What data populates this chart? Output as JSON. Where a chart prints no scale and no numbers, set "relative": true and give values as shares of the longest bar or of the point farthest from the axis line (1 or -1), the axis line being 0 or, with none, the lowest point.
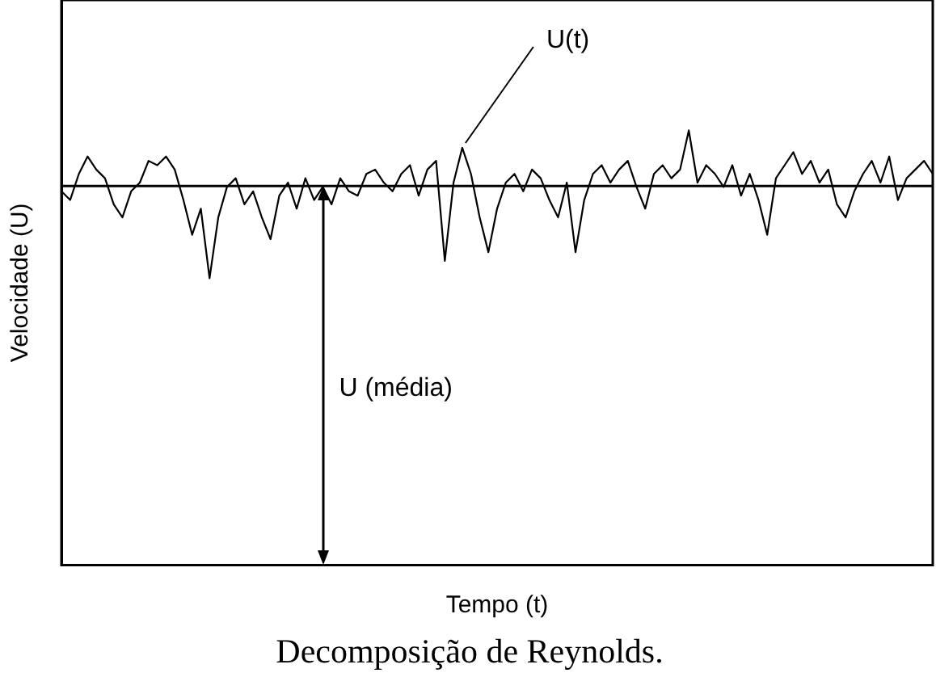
{
  "chart_data": {
    "type": "line",
    "title": "Decomposição de Reynolds.",
    "xlabel": "Tempo (t)",
    "ylabel": "Velocidade (U)",
    "relative": true,
    "grid": false,
    "legend": false,
    "marker": "none",
    "line_style": "solid",
    "categories": [
      null,
      null,
      null,
      null,
      null,
      null,
      null,
      null,
      null,
      null,
      null,
      null,
      null,
      null,
      null,
      null,
      null,
      null,
      null,
      null,
      null,
      null,
      null,
      null,
      null,
      null,
      null,
      null,
      null,
      null,
      null,
      null,
      null,
      null,
      null,
      null,
      null,
      null,
      null,
      null,
      null,
      null,
      null,
      null,
      null,
      null,
      null,
      null,
      null,
      null,
      null,
      null,
      null,
      null,
      null,
      null,
      null,
      null,
      null,
      null,
      null,
      null,
      null,
      null,
      null,
      null,
      null,
      null,
      null,
      null,
      null,
      null,
      null,
      null,
      null,
      null,
      null,
      null,
      null,
      null,
      null,
      null,
      null,
      null,
      null,
      null,
      null,
      null,
      null,
      null,
      null,
      null,
      null,
      null,
      null,
      null,
      null,
      null,
      null,
      null,
      null
    ],
    "series": [
      {
        "color": "#000000",
        "values": [
          0.86,
          0.84,
          0.9,
          0.94,
          0.91,
          0.89,
          0.83,
          0.8,
          0.86,
          0.88,
          0.93,
          0.92,
          0.94,
          0.91,
          0.84,
          0.76,
          0.82,
          0.66,
          0.8,
          0.87,
          0.89,
          0.83,
          0.86,
          0.8,
          0.75,
          0.85,
          0.88,
          0.82,
          0.89,
          0.84,
          0.87,
          0.83,
          0.89,
          0.86,
          0.85,
          0.9,
          0.91,
          0.88,
          0.86,
          0.9,
          0.92,
          0.85,
          0.91,
          0.93,
          0.7,
          0.88,
          0.96,
          0.9,
          0.8,
          0.72,
          0.82,
          0.88,
          0.9,
          0.86,
          0.91,
          0.89,
          0.84,
          0.8,
          0.88,
          0.72,
          0.84,
          0.9,
          0.92,
          0.88,
          0.91,
          0.93,
          0.87,
          0.82,
          0.9,
          0.92,
          0.89,
          0.91,
          1.0,
          0.88,
          0.92,
          0.9,
          0.87,
          0.92,
          0.85,
          0.9,
          0.84,
          0.76,
          0.89,
          0.92,
          0.95,
          0.9,
          0.93,
          0.88,
          0.91,
          0.83,
          0.8,
          0.86,
          0.9,
          0.93,
          0.88,
          0.94,
          0.84,
          0.89,
          0.91,
          0.93,
          0.9
        ]
      }
    ],
    "ref_lines": [
      {
        "axis": "y",
        "value": 0.872,
        "label": "U (média)",
        "color": "#000000"
      }
    ],
    "annotations": [
      "U(t)"
    ]
  }
}
